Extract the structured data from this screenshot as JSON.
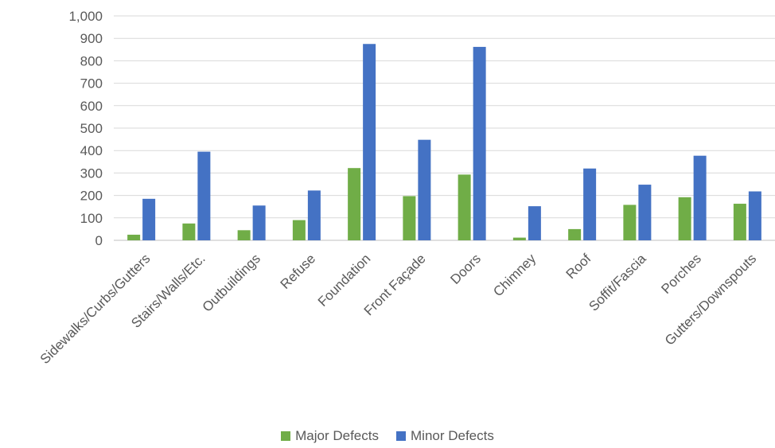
{
  "chart_data": {
    "type": "bar",
    "categories": [
      "Sidewalks/Curbs/Gutters",
      "Stairs/Walls/Etc.",
      "Outbuildings",
      "Refuse",
      "Foundation",
      "Front Façade",
      "Doors",
      "Chimney",
      "Roof",
      "Soffit/Fascia",
      "Porches",
      "Gutters/Downspouts"
    ],
    "series": [
      {
        "name": "Major Defects",
        "color": "#70AD47",
        "values": [
          25,
          75,
          45,
          90,
          322,
          197,
          293,
          12,
          50,
          158,
          192,
          163
        ]
      },
      {
        "name": "Minor Defects",
        "color": "#4472C4",
        "values": [
          185,
          395,
          155,
          222,
          875,
          448,
          862,
          152,
          320,
          248,
          377,
          218
        ]
      }
    ],
    "yticks": [
      "0",
      "100",
      "200",
      "300",
      "400",
      "500",
      "600",
      "700",
      "800",
      "900",
      "1,000"
    ],
    "ylim": [
      0,
      1000
    ],
    "grid": true,
    "legend": "bottom-center",
    "title": "",
    "xlabel": "",
    "ylabel": ""
  }
}
